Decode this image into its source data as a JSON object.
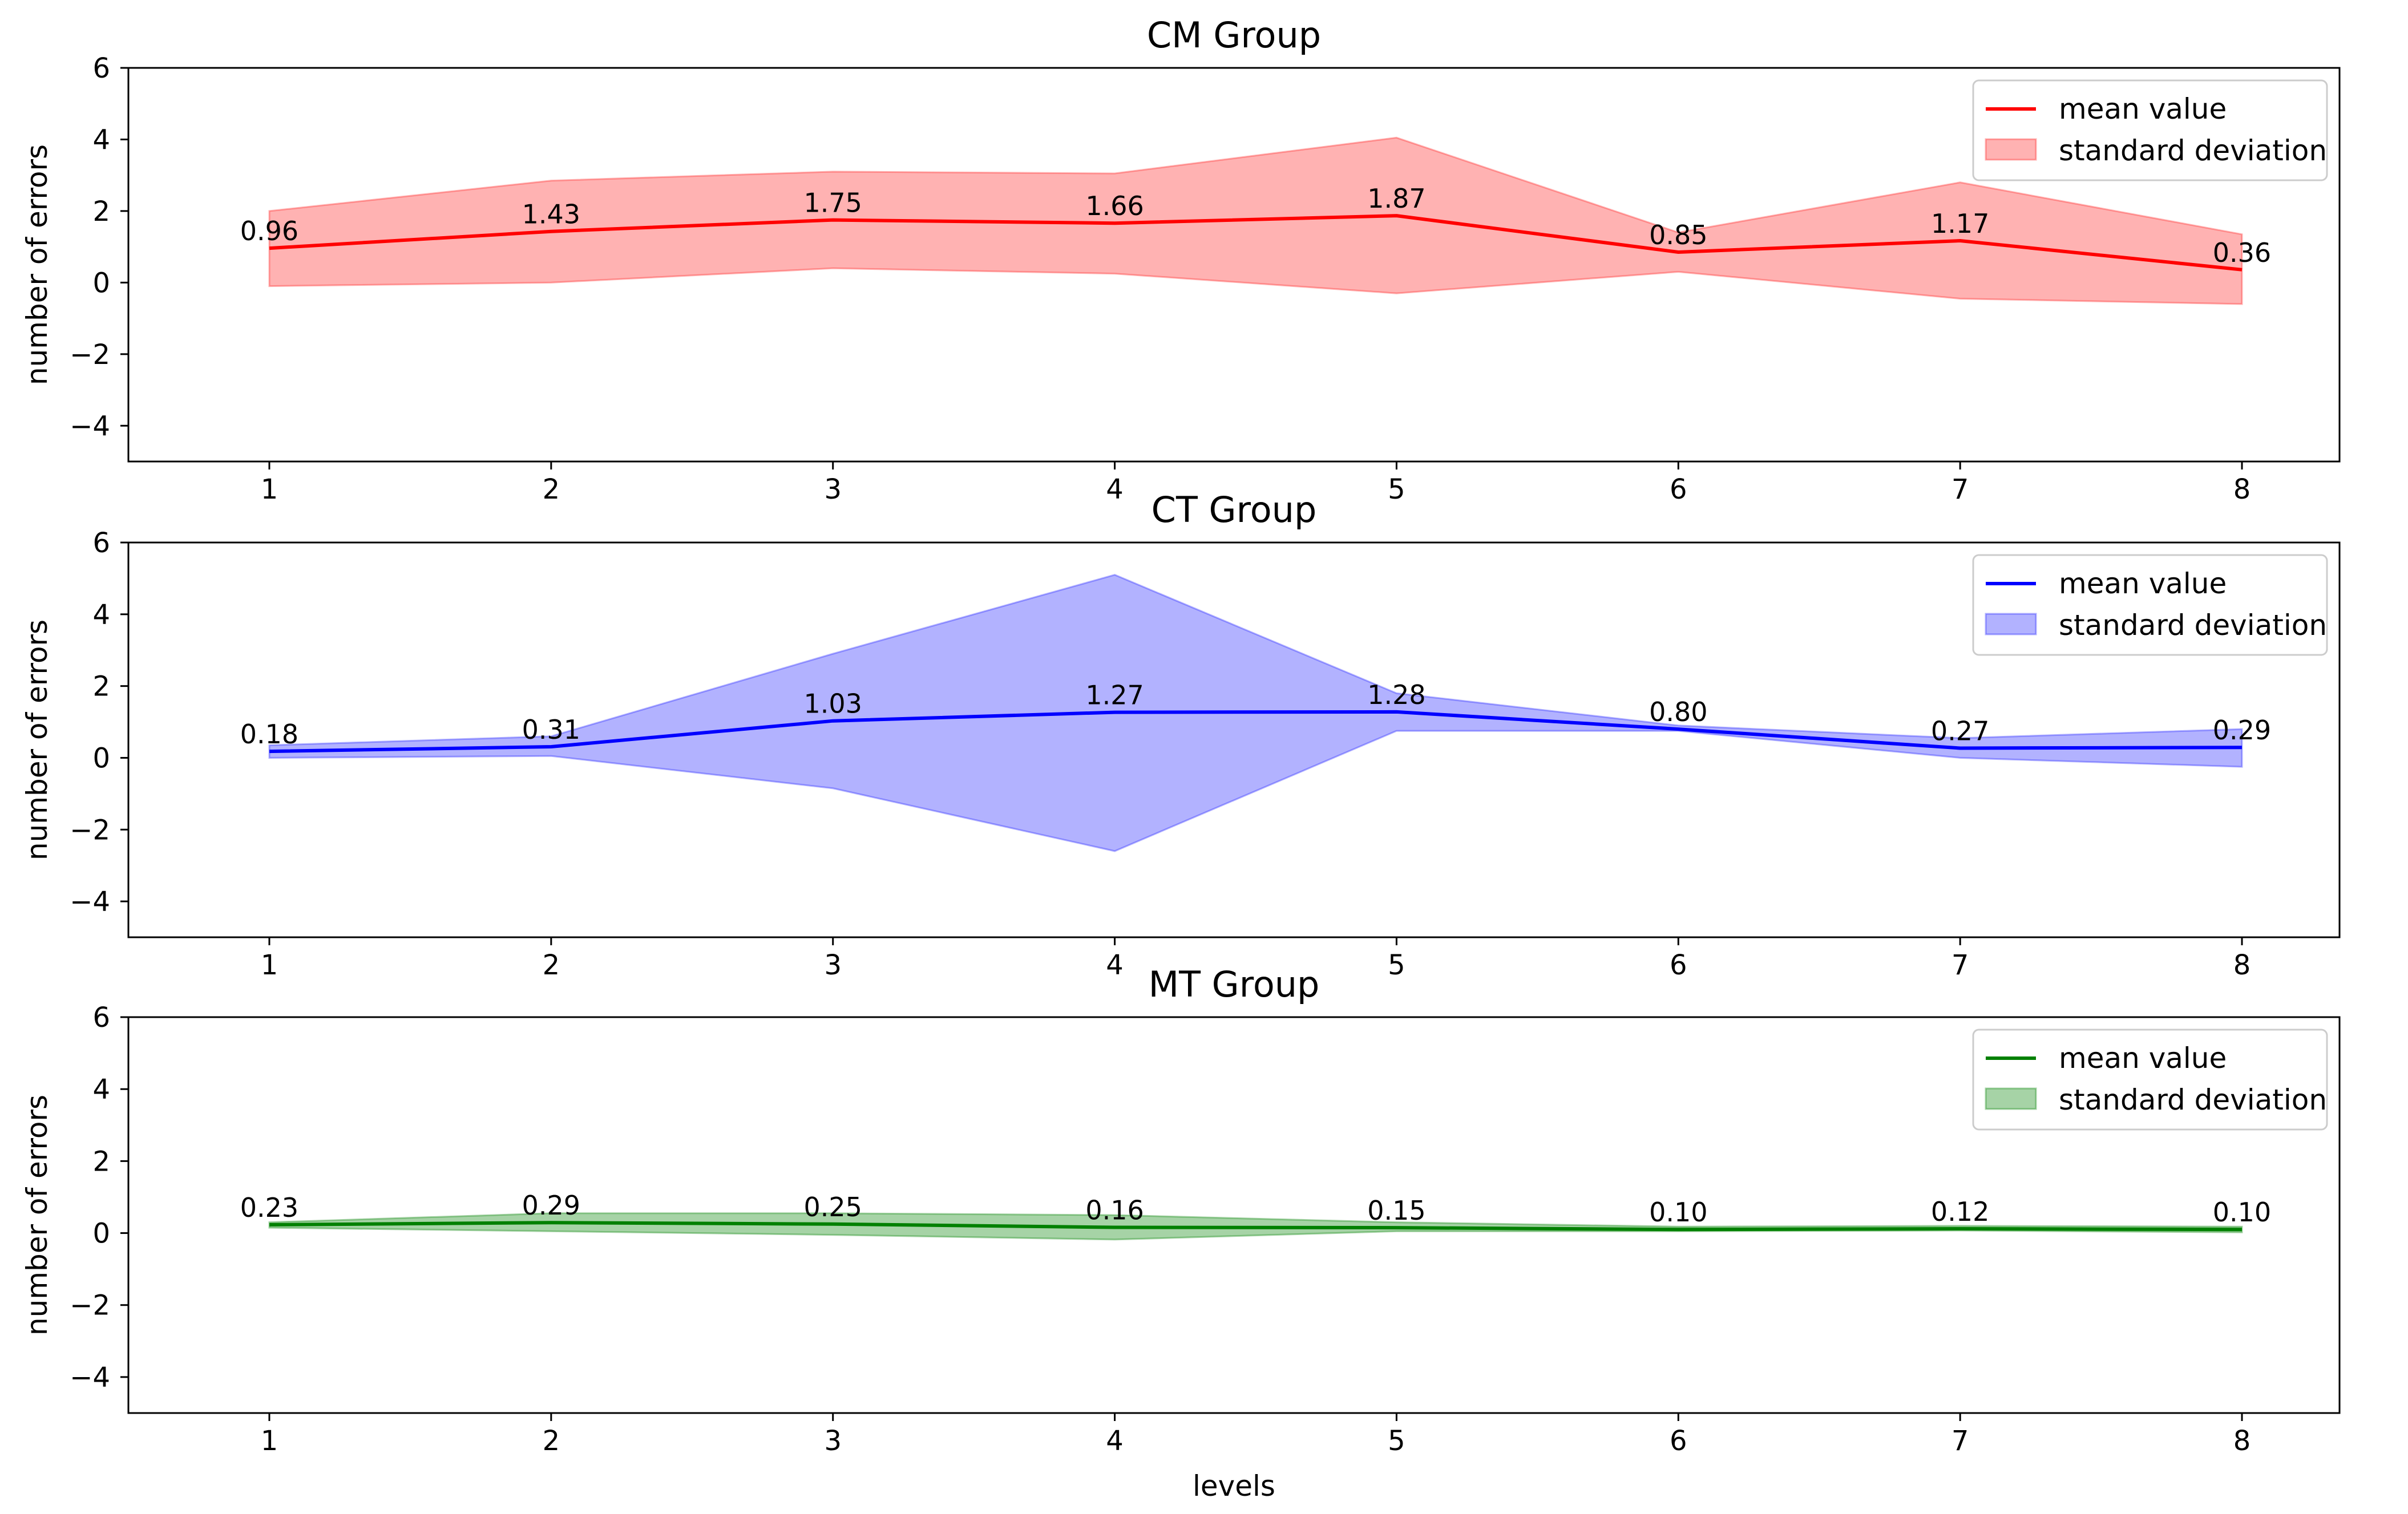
{
  "chart_data": [
    {
      "type": "line",
      "title": "CM Group",
      "xlabel": "",
      "ylabel": "number of errors",
      "categories": [
        1,
        2,
        3,
        4,
        5,
        6,
        7,
        8
      ],
      "x_ticks": [
        "1",
        "2",
        "3",
        "4",
        "5",
        "6",
        "7",
        "8"
      ],
      "y_ticks": [
        "−4",
        "−2",
        "0",
        "2",
        "4",
        "6"
      ],
      "ylim": [
        -5,
        6
      ],
      "series": [
        {
          "name": "mean value",
          "kind": "line",
          "color": "#ff0000",
          "values": [
            0.96,
            1.43,
            1.75,
            1.66,
            1.87,
            0.85,
            1.17,
            0.36
          ]
        },
        {
          "name": "standard deviation",
          "kind": "band",
          "color": "#ff0000",
          "opacity": 0.3,
          "lower": [
            -0.1,
            0.0,
            0.4,
            0.25,
            -0.3,
            0.3,
            -0.45,
            -0.6
          ],
          "upper": [
            2.0,
            2.85,
            3.1,
            3.05,
            4.05,
            1.4,
            2.8,
            1.35
          ]
        }
      ],
      "data_labels": [
        "0.96",
        "1.43",
        "1.75",
        "1.66",
        "1.87",
        "0.85",
        "1.17",
        "0.36"
      ],
      "legend": {
        "position": "top-right",
        "entries": [
          "mean value",
          "standard deviation"
        ]
      },
      "grid": false
    },
    {
      "type": "line",
      "title": "CT Group",
      "xlabel": "",
      "ylabel": "number of errors",
      "categories": [
        1,
        2,
        3,
        4,
        5,
        6,
        7,
        8
      ],
      "x_ticks": [
        "1",
        "2",
        "3",
        "4",
        "5",
        "6",
        "7",
        "8"
      ],
      "y_ticks": [
        "−4",
        "−2",
        "0",
        "2",
        "4",
        "6"
      ],
      "ylim": [
        -5,
        6
      ],
      "series": [
        {
          "name": "mean value",
          "kind": "line",
          "color": "#0000ff",
          "values": [
            0.18,
            0.31,
            1.03,
            1.27,
            1.28,
            0.8,
            0.27,
            0.29
          ]
        },
        {
          "name": "standard deviation",
          "kind": "band",
          "color": "#0000ff",
          "opacity": 0.3,
          "lower": [
            0.0,
            0.05,
            -0.85,
            -2.6,
            0.75,
            0.75,
            0.0,
            -0.25
          ],
          "upper": [
            0.35,
            0.6,
            2.9,
            5.1,
            1.8,
            0.9,
            0.55,
            0.8
          ]
        }
      ],
      "data_labels": [
        "0.18",
        "0.31",
        "1.03",
        "1.27",
        "1.28",
        "0.80",
        "0.27",
        "0.29"
      ],
      "legend": {
        "position": "top-right",
        "entries": [
          "mean value",
          "standard deviation"
        ]
      },
      "grid": false
    },
    {
      "type": "line",
      "title": "MT Group",
      "xlabel": "levels",
      "ylabel": "number of errors",
      "categories": [
        1,
        2,
        3,
        4,
        5,
        6,
        7,
        8
      ],
      "x_ticks": [
        "1",
        "2",
        "3",
        "4",
        "5",
        "6",
        "7",
        "8"
      ],
      "y_ticks": [
        "−4",
        "−2",
        "0",
        "2",
        "4",
        "6"
      ],
      "ylim": [
        -5,
        6
      ],
      "series": [
        {
          "name": "mean value",
          "kind": "line",
          "color": "#008000",
          "values": [
            0.23,
            0.29,
            0.25,
            0.16,
            0.15,
            0.1,
            0.12,
            0.1
          ]
        },
        {
          "name": "standard deviation",
          "kind": "band",
          "color": "#008000",
          "opacity": 0.35,
          "lower": [
            0.15,
            0.05,
            -0.05,
            -0.18,
            0.05,
            0.05,
            0.07,
            0.02
          ],
          "upper": [
            0.3,
            0.55,
            0.55,
            0.5,
            0.3,
            0.18,
            0.2,
            0.18
          ]
        }
      ],
      "data_labels": [
        "0.23",
        "0.29",
        "0.25",
        "0.16",
        "0.15",
        "0.10",
        "0.12",
        "0.10"
      ],
      "legend": {
        "position": "top-right",
        "entries": [
          "mean value",
          "standard deviation"
        ]
      },
      "grid": false
    }
  ]
}
